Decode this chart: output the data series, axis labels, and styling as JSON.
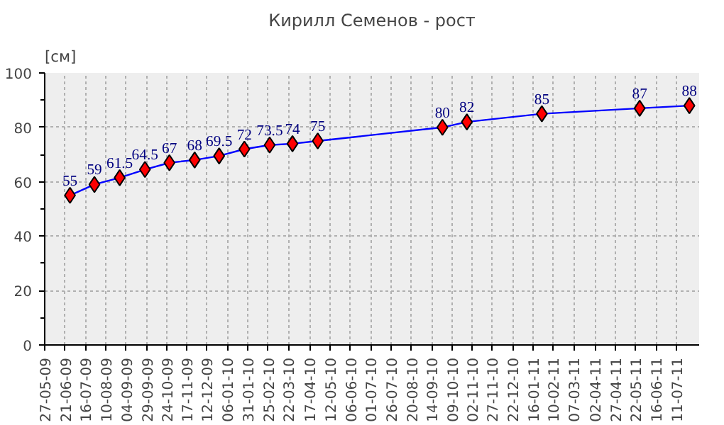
{
  "chart_data": {
    "type": "line",
    "title": "Кирилл Семенов - рост",
    "ylabel": "[см]",
    "x": [
      "2009-06-27",
      "2009-07-27",
      "2009-08-27",
      "2009-09-27",
      "2009-10-27",
      "2009-11-27",
      "2009-12-27",
      "2010-01-27",
      "2010-02-27",
      "2010-03-27",
      "2010-04-27",
      "2010-09-27",
      "2010-10-27",
      "2011-01-27",
      "2011-05-27",
      "2011-07-27"
    ],
    "series": [
      {
        "color": "#0000ff",
        "values": [
          55,
          59,
          61.5,
          64.5,
          67,
          68,
          69.5,
          72,
          73.5,
          74,
          75,
          80,
          82,
          85,
          87,
          88
        ]
      }
    ],
    "marker": "diamond",
    "data_labels": true,
    "grid": true,
    "ylim": [
      0,
      100
    ],
    "yticks": [
      0,
      20,
      40,
      60,
      80,
      100
    ],
    "xlim": [
      "2009-05-27",
      "2011-08-08"
    ],
    "xticks": [
      {
        "value": "2009-05-27",
        "label": "27-05-09"
      },
      {
        "value": "2009-06-21",
        "label": "21-06-09"
      },
      {
        "value": "2009-07-16",
        "label": "16-07-09"
      },
      {
        "value": "2009-08-10",
        "label": "10-08-09"
      },
      {
        "value": "2009-09-04",
        "label": "04-09-09"
      },
      {
        "value": "2009-09-29",
        "label": "29-09-09"
      },
      {
        "value": "2009-10-24",
        "label": "24-10-09"
      },
      {
        "value": "2009-11-17",
        "label": "17-11-09"
      },
      {
        "value": "2009-12-12",
        "label": "12-12-09"
      },
      {
        "value": "2010-01-06",
        "label": "06-01-10"
      },
      {
        "value": "2010-01-31",
        "label": "31-01-10"
      },
      {
        "value": "2010-02-25",
        "label": "25-02-10"
      },
      {
        "value": "2010-03-22",
        "label": "22-03-10"
      },
      {
        "value": "2010-04-17",
        "label": "17-04-10"
      },
      {
        "value": "2010-05-12",
        "label": "12-05-10"
      },
      {
        "value": "2010-06-06",
        "label": "06-06-10"
      },
      {
        "value": "2010-07-01",
        "label": "01-07-10"
      },
      {
        "value": "2010-07-26",
        "label": "26-07-10"
      },
      {
        "value": "2010-08-20",
        "label": "20-08-10"
      },
      {
        "value": "2010-09-14",
        "label": "14-09-10"
      },
      {
        "value": "2010-10-09",
        "label": "09-10-10"
      },
      {
        "value": "2010-11-02",
        "label": "02-11-10"
      },
      {
        "value": "2010-11-27",
        "label": "27-11-10"
      },
      {
        "value": "2010-12-22",
        "label": "22-12-10"
      },
      {
        "value": "2011-01-16",
        "label": "16-01-11"
      },
      {
        "value": "2011-02-10",
        "label": "10-02-11"
      },
      {
        "value": "2011-03-07",
        "label": "07-03-11"
      },
      {
        "value": "2011-04-02",
        "label": "02-04-11"
      },
      {
        "value": "2011-04-27",
        "label": "27-04-11"
      },
      {
        "value": "2011-05-22",
        "label": "22-05-11"
      },
      {
        "value": "2011-06-16",
        "label": "16-06-11"
      },
      {
        "value": "2011-07-11",
        "label": "11-07-11"
      }
    ]
  }
}
